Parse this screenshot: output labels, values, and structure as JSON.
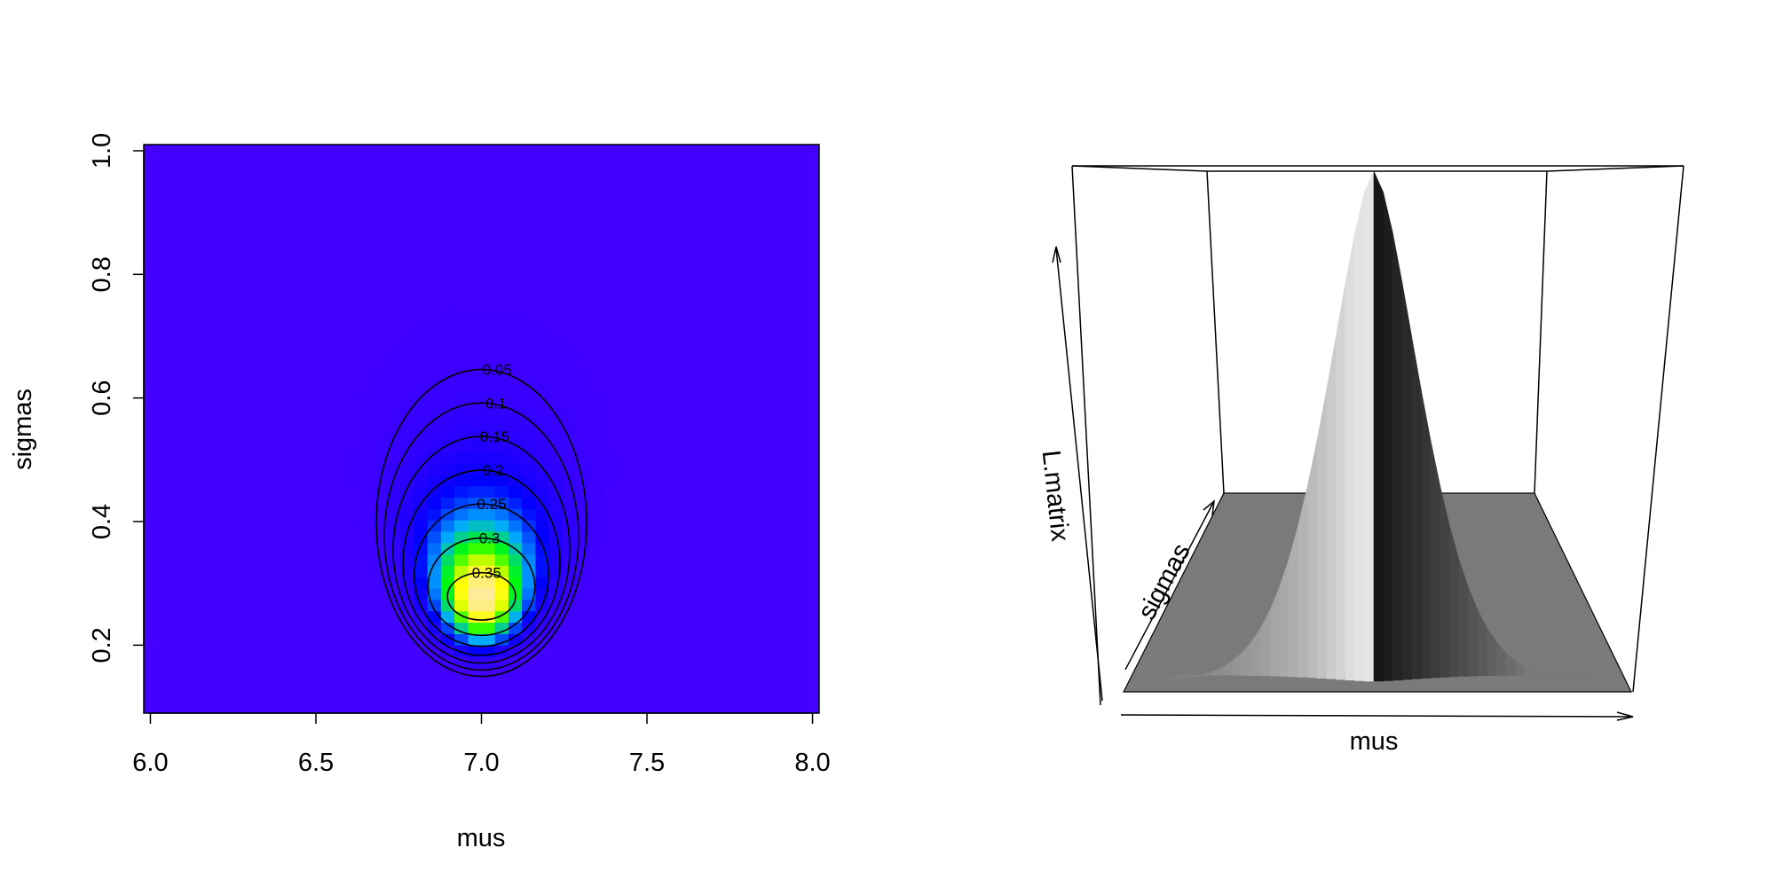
{
  "chart_data": [
    {
      "type": "heatmap",
      "title": "",
      "xlabel": "mus",
      "ylabel": "sigmas",
      "xlim": [
        5.98,
        8.02
      ],
      "ylim": [
        0.09,
        1.01
      ],
      "x_ticks": [
        6.0,
        6.5,
        7.0,
        7.5,
        8.0
      ],
      "x_tick_labels": [
        "6.0",
        "6.5",
        "7.0",
        "7.5",
        "8.0"
      ],
      "y_ticks": [
        0.2,
        0.4,
        0.6,
        0.8,
        1.0
      ],
      "y_tick_labels": [
        "0.2",
        "0.4",
        "0.6",
        "0.8",
        "1.0"
      ],
      "grid": false,
      "surface": {
        "description": "normal likelihood surface",
        "peak_mu": 7.0,
        "peak_sigma": 0.28,
        "peak_value": 0.38
      },
      "contour_levels": [
        0.05,
        0.1,
        0.15,
        0.2,
        0.25,
        0.3,
        0.35
      ],
      "contour_labels": [
        "0.05",
        "0.1",
        "0.15",
        "0.2",
        "0.25",
        "0.3",
        "0.35"
      ],
      "colormap": [
        "#4400ff",
        "#0000ff",
        "#00aaff",
        "#00ff00",
        "#ffff00",
        "#ffe8b0"
      ]
    },
    {
      "type": "surface3d",
      "title": "",
      "xlabel": "mus",
      "ylabel": "sigmas",
      "zlabel": "L.matrix",
      "shading": "grayscale"
    }
  ]
}
